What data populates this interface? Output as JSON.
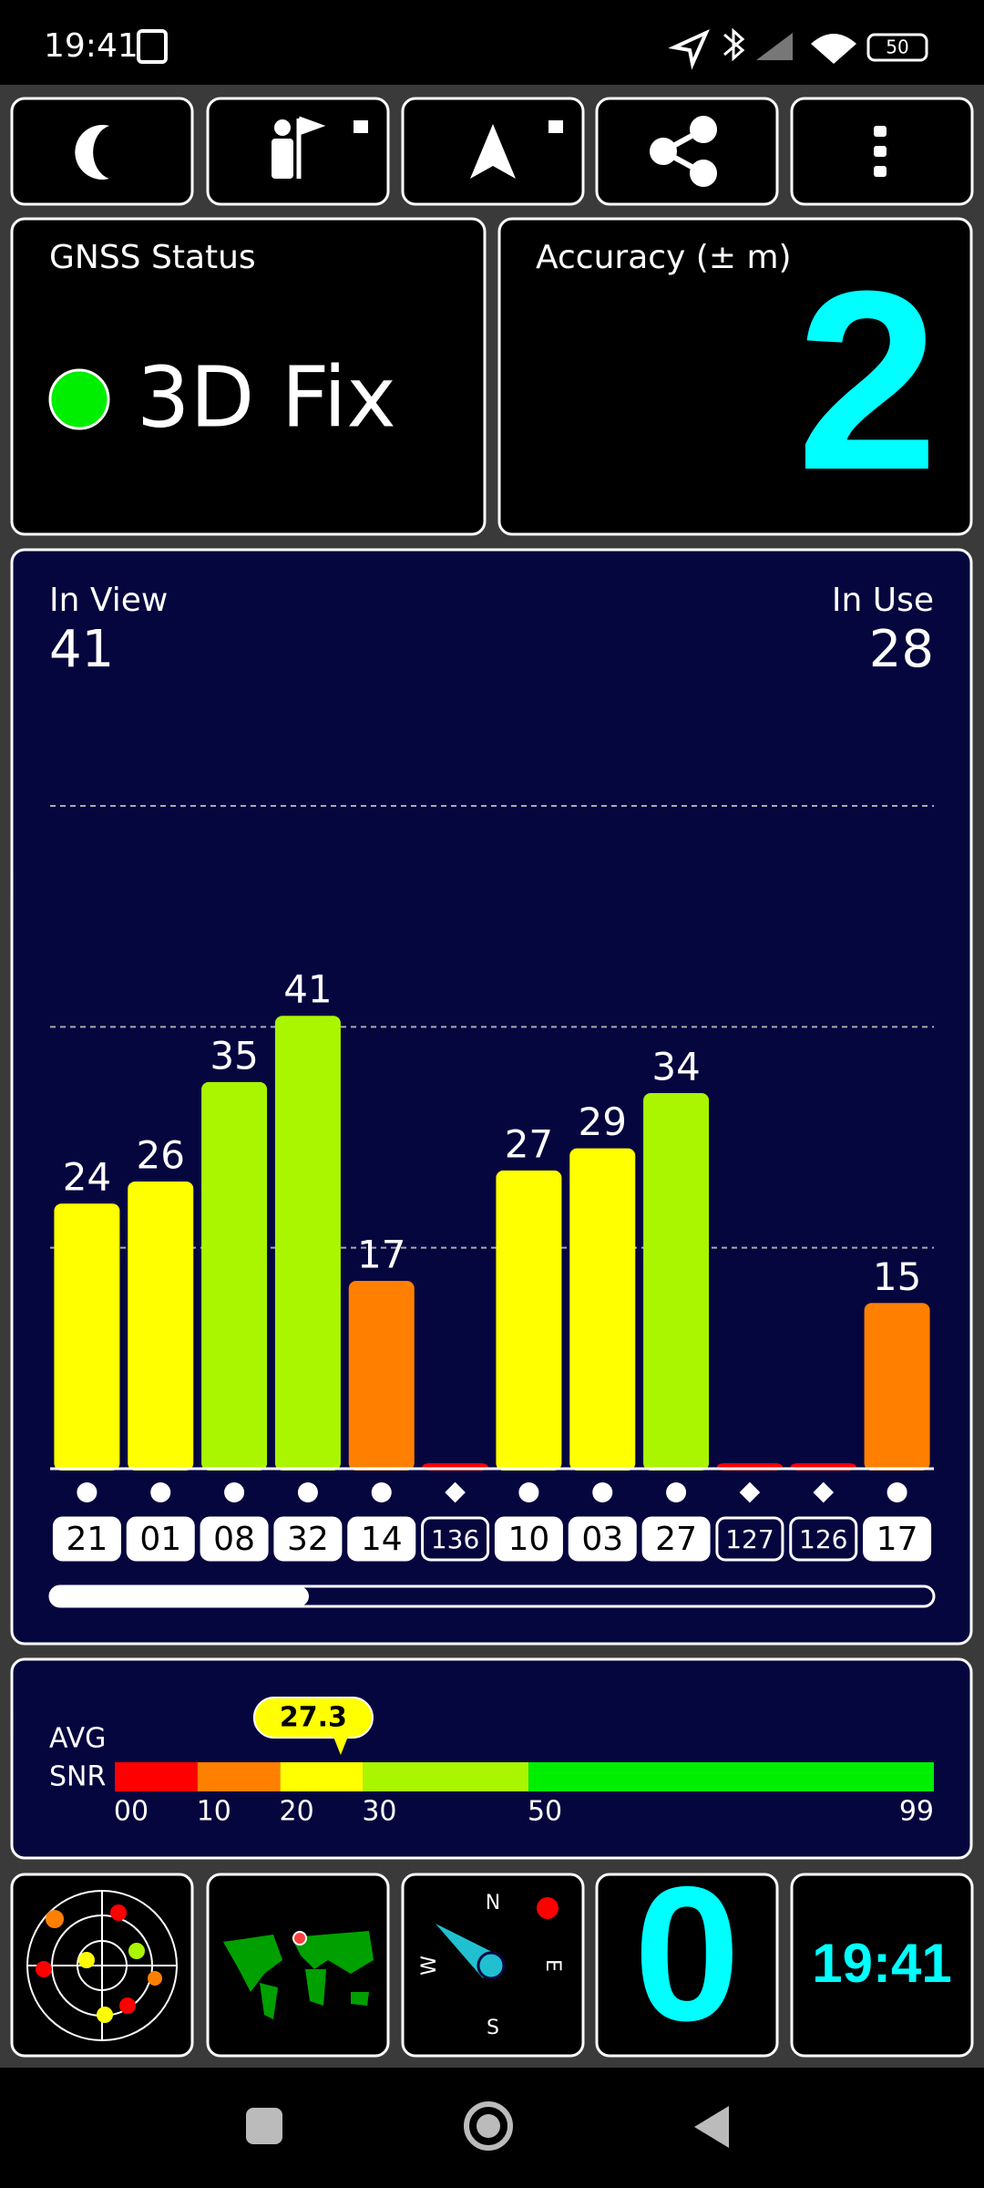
{
  "status_bar": {
    "time": "19:41",
    "battery": "50"
  },
  "gnss_status": {
    "title": "GNSS Status",
    "value": "3D Fix"
  },
  "accuracy": {
    "title": "Accuracy (± m)",
    "value": "2"
  },
  "chart_data": {
    "type": "bar",
    "in_view_label": "In View",
    "in_view": 41,
    "in_use_label": "In Use",
    "in_use": 28,
    "categories": [
      "21",
      "01",
      "08",
      "32",
      "14",
      "136",
      "10",
      "03",
      "27",
      "127",
      "126",
      "17"
    ],
    "markers": [
      "circle",
      "circle",
      "circle",
      "circle",
      "circle",
      "diamond",
      "circle",
      "circle",
      "circle",
      "diamond",
      "diamond",
      "circle"
    ],
    "values": [
      24,
      26,
      35,
      41,
      17,
      0,
      27,
      29,
      34,
      0,
      0,
      15
    ],
    "ylim": [
      0,
      60
    ],
    "yticks": [
      20,
      40,
      60
    ],
    "grid": true
  },
  "snr": {
    "label_top": "AVG",
    "label_bottom": "SNR",
    "average": 27.3,
    "xlim": [
      0,
      99
    ],
    "ticks": [
      {
        "value": 0,
        "label": "00"
      },
      10,
      20,
      30,
      50,
      99
    ],
    "colors": [
      "#ff0000",
      "#ff8000",
      "#ffff00",
      "#aaf500",
      "#00ee00"
    ]
  },
  "compass": {
    "n": "N",
    "e": "E",
    "s": "S",
    "w": "W"
  },
  "speed": "0",
  "clock": "19:41"
}
